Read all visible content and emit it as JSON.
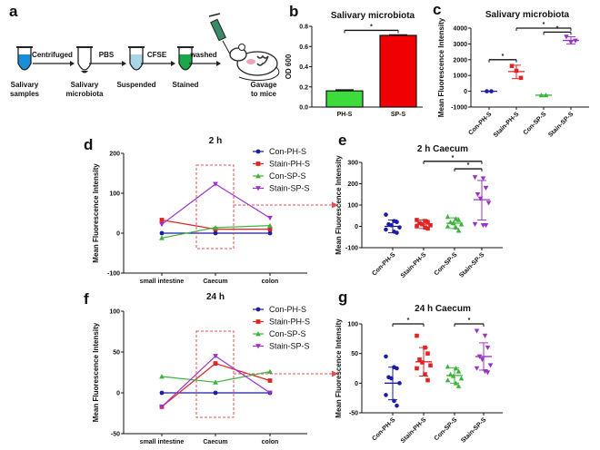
{
  "colors": {
    "blue": "#1c1ca8",
    "red": "#e02424",
    "green": "#3cb43c",
    "purple": "#9b32c8",
    "tube_blue": "#1a8fd8",
    "tube_light": "#a9d6e6",
    "tube_green": "#1aa84a",
    "box": "#e05050"
  },
  "panel_labels": {
    "a": "a",
    "b": "b",
    "c": "c",
    "d": "d",
    "e": "e",
    "f": "f",
    "g": "g"
  },
  "workflow": {
    "steps": [
      {
        "label1": "Salivary",
        "label2": "samples",
        "fill": "tube_blue"
      },
      {
        "label1": "Salivary",
        "label2": "microbiota",
        "fill": "pellet"
      },
      {
        "label1": "Suspended",
        "label2": "",
        "fill": "tube_light"
      },
      {
        "label1": "Stained",
        "label2": "",
        "fill": "tube_green"
      }
    ],
    "arrows": [
      "Centrifuged",
      "PBS",
      "CFSE",
      "washed"
    ],
    "final": {
      "label1": "Gavage",
      "label2": "to mice"
    }
  },
  "chart_data": [
    {
      "id": "b",
      "type": "bar",
      "title": "Salivary microbiota",
      "ylabel": "OD 600",
      "xlabel": "",
      "categories": [
        "PH-S",
        "SP-S"
      ],
      "values": [
        0.16,
        0.71
      ],
      "errors": [
        0.01,
        0.005
      ],
      "colors": [
        "#3ddc3d",
        "#f00000"
      ],
      "ylim": [
        0,
        0.8
      ],
      "yticks": [
        "0.0",
        "0.2",
        "0.4",
        "0.6",
        "0.8"
      ],
      "significance": [
        {
          "from": 0,
          "to": 1,
          "label": "*"
        }
      ]
    },
    {
      "id": "c",
      "type": "scatter",
      "title": "Salivary microbiota",
      "ylabel": "Mean Fluorescence Intensity",
      "categories": [
        "Con-PH-S",
        "Stain-PH-S",
        "Con-SP-S",
        "Stain-SP-S"
      ],
      "ylim": [
        -1000,
        4000
      ],
      "yticks": [
        "-1000",
        "0",
        "1000",
        "2000",
        "3000",
        "4000"
      ],
      "groups": [
        {
          "points": [
            0,
            0
          ],
          "mean": 0,
          "low": 0,
          "high": 0
        },
        {
          "points": [
            1600,
            1300,
            850
          ],
          "mean": 1250,
          "low": 800,
          "high": 1650
        },
        {
          "points": [
            -250,
            -250
          ],
          "mean": -250,
          "low": -250,
          "high": -250
        },
        {
          "points": [
            3450,
            3100,
            3200
          ],
          "mean": 3220,
          "low": 3000,
          "high": 3450
        }
      ],
      "significance": [
        {
          "from": 0,
          "to": 1,
          "label": "*",
          "level": 2000
        },
        {
          "from": 1,
          "to": 3,
          "label": "*",
          "level": 4000
        },
        {
          "from": 2,
          "to": 3,
          "label": "*",
          "level": 3750
        }
      ]
    },
    {
      "id": "d",
      "type": "line",
      "title": "2 h",
      "ylabel": "Mean Fluorescence Intensity",
      "categories": [
        "small intestine",
        "Caecum",
        "colon"
      ],
      "ylim": [
        -100,
        200
      ],
      "yticks": [
        "-100",
        "0",
        "100",
        "200"
      ],
      "series": [
        {
          "name": "Con-PH-S",
          "values": [
            0,
            0,
            0
          ]
        },
        {
          "name": "Stain-PH-S",
          "values": [
            33,
            10,
            10
          ]
        },
        {
          "name": "Con-SP-S",
          "values": [
            -12,
            14,
            19
          ]
        },
        {
          "name": "Stain-SP-S",
          "values": [
            22,
            123,
            38
          ]
        }
      ],
      "legend": "top-right"
    },
    {
      "id": "e",
      "type": "scatter",
      "title": "2 h  Caecum",
      "ylabel": "Mean Fluorescence Intensity",
      "categories": [
        "Con-PH-S",
        "Stain-PH-S",
        "Con-SP-S",
        "Stain-SP-S"
      ],
      "ylim": [
        -100,
        300
      ],
      "yticks": [
        "-100",
        "0",
        "100",
        "200",
        "300"
      ],
      "groups": [
        {
          "points": [
            55,
            25,
            20,
            10,
            5,
            -5,
            -15,
            -25,
            -30
          ],
          "mean": 0,
          "low": -30,
          "high": 30
        },
        {
          "points": [
            30,
            25,
            20,
            15,
            10,
            5,
            0,
            -5,
            -10
          ],
          "mean": 10,
          "low": -10,
          "high": 30
        },
        {
          "points": [
            45,
            35,
            30,
            20,
            15,
            10,
            0,
            -5,
            -20
          ],
          "mean": 15,
          "low": -10,
          "high": 40
        },
        {
          "points": [
            230,
            225,
            180,
            150,
            130,
            110,
            10,
            5,
            5
          ],
          "mean": 125,
          "low": 30,
          "high": 215
        }
      ],
      "significance": [
        {
          "from": 1,
          "to": 3,
          "label": "*",
          "level": 305
        },
        {
          "from": 2,
          "to": 3,
          "label": "*",
          "level": 270
        }
      ]
    },
    {
      "id": "f",
      "type": "line",
      "title": "24 h",
      "ylabel": "Mean Fluorescence Intensity",
      "categories": [
        "small intestine",
        "Caecum",
        "colon"
      ],
      "ylim": [
        -50,
        100
      ],
      "yticks": [
        "-50",
        "0",
        "50",
        "100"
      ],
      "series": [
        {
          "name": "Con-PH-S",
          "values": [
            0,
            0,
            0
          ]
        },
        {
          "name": "Stain-PH-S",
          "values": [
            -17,
            36,
            15
          ]
        },
        {
          "name": "Con-SP-S",
          "values": [
            20,
            13,
            26
          ]
        },
        {
          "name": "Stain-SP-S",
          "values": [
            -17,
            45,
            0
          ]
        }
      ],
      "legend": "top-right"
    },
    {
      "id": "g",
      "type": "scatter",
      "title": "24 h Caecum",
      "ylabel": "Mean Fluorescence Intensity",
      "categories": [
        "Con-PH-S",
        "Stain-PH-S",
        "Con-SP-S",
        "Stain-SP-S"
      ],
      "ylim": [
        -50,
        100
      ],
      "yticks": [
        "-50",
        "0",
        "50",
        "100"
      ],
      "groups": [
        {
          "points": [
            45,
            27,
            25,
            10,
            8,
            0,
            -20,
            -30,
            -38
          ],
          "mean": 0,
          "low": -28,
          "high": 27
        },
        {
          "points": [
            80,
            60,
            50,
            40,
            35,
            30,
            25,
            15,
            5
          ],
          "mean": 36,
          "low": 12,
          "high": 60
        },
        {
          "points": [
            28,
            25,
            20,
            15,
            12,
            8,
            5,
            0,
            -5
          ],
          "mean": 13,
          "low": 0,
          "high": 26
        },
        {
          "points": [
            88,
            80,
            60,
            45,
            40,
            30,
            25,
            20,
            18
          ],
          "mean": 45,
          "low": 22,
          "high": 68
        }
      ],
      "significance": [
        {
          "from": 0,
          "to": 1,
          "label": "*",
          "level": 100
        },
        {
          "from": 2,
          "to": 3,
          "label": "*",
          "level": 100
        }
      ]
    }
  ]
}
